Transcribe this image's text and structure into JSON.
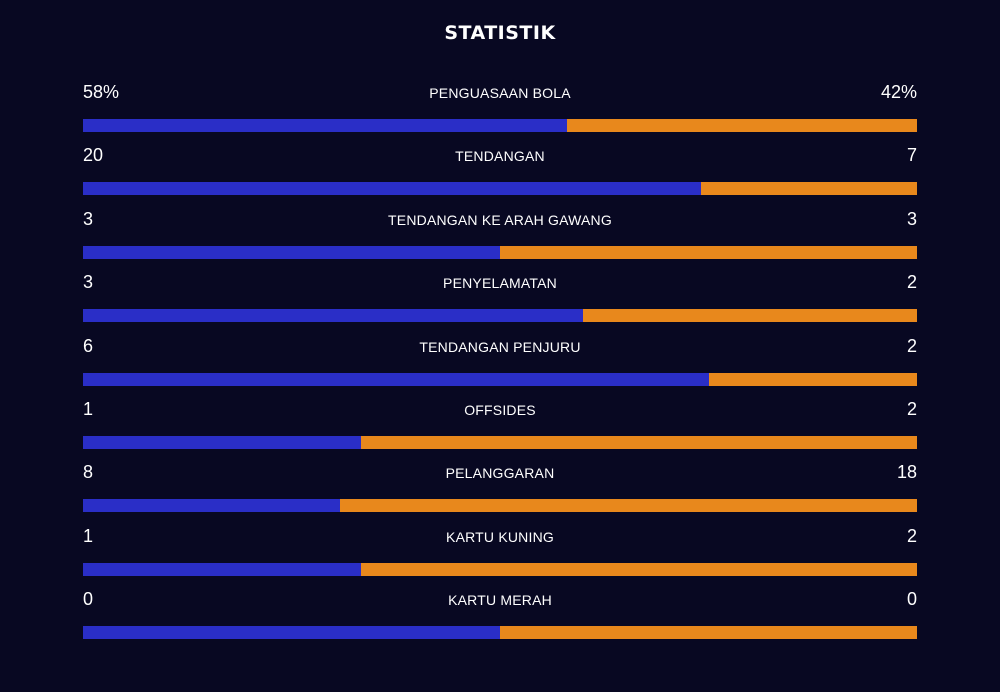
{
  "title": "STATISTIK",
  "colors": {
    "background": "#080822",
    "home": "#2a2ec7",
    "away": "#e8881c"
  },
  "stats": [
    {
      "label": "PENGUASAAN BOLA",
      "home": "58%",
      "away": "42%",
      "home_share": 0.58
    },
    {
      "label": "TENDANGAN",
      "home": "20",
      "away": "7",
      "home_share": 0.741
    },
    {
      "label": "TENDANGAN KE ARAH GAWANG",
      "home": "3",
      "away": "3",
      "home_share": 0.5
    },
    {
      "label": "PENYELAMATAN",
      "home": "3",
      "away": "2",
      "home_share": 0.6
    },
    {
      "label": "TENDANGAN PENJURU",
      "home": "6",
      "away": "2",
      "home_share": 0.75
    },
    {
      "label": "OFFSIDES",
      "home": "1",
      "away": "2",
      "home_share": 0.333
    },
    {
      "label": "PELANGGARAN",
      "home": "8",
      "away": "18",
      "home_share": 0.308
    },
    {
      "label": "KARTU KUNING",
      "home": "1",
      "away": "2",
      "home_share": 0.333
    },
    {
      "label": "KARTU MERAH",
      "home": "0",
      "away": "0",
      "home_share": 0.5
    }
  ]
}
